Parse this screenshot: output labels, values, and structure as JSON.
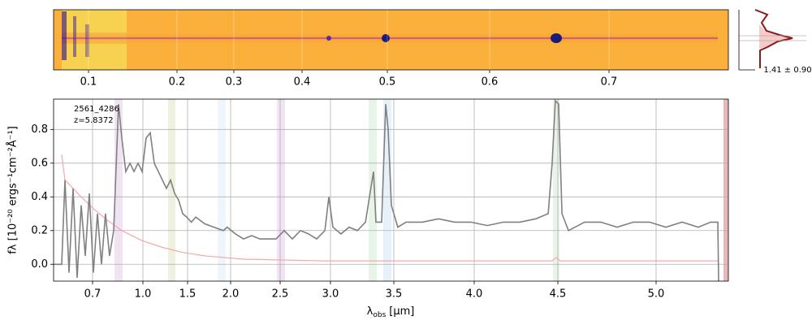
{
  "chart_data": {
    "type": "line",
    "object_id": "2561_4286",
    "redshift_label": "z=5.8372",
    "y_label": "fλ [10⁻²⁰ ergs⁻¹cm⁻²Å⁻¹]",
    "x_label_symbol": "λ",
    "x_label_sub": "obs",
    "x_label_unit": "[μm]",
    "profile_label": "1.41 ± 0.90",
    "top_xticks": [
      0.1,
      0.2,
      0.3,
      0.4,
      0.5,
      0.6,
      0.7
    ],
    "xlim": [
      0.47,
      5.37
    ],
    "xticks": [
      0.7,
      {
        "value": 1.0,
        "label": "1.0"
      },
      1.5,
      {
        "value": 2.0,
        "label": "2.0"
      },
      2.5,
      {
        "value": 3.0,
        "label": "3.0"
      },
      3.5,
      {
        "value": 4.0,
        "label": "4.0"
      },
      4.5,
      {
        "value": 5.0,
        "label": "5.0"
      }
    ],
    "ylim": [
      -0.1,
      0.98
    ],
    "yticks": [
      {
        "value": 0,
        "label": "0.0"
      },
      0.2,
      0.4,
      0.6,
      0.8
    ],
    "grid": true,
    "series": [
      {
        "name": "flux",
        "color": "#808080",
        "x": [
          0.47,
          0.518,
          0.537,
          0.561,
          0.585,
          0.609,
          0.633,
          0.657,
          0.681,
          0.705,
          0.729,
          0.753,
          0.777,
          0.801,
          0.826,
          0.855,
          0.874,
          0.898,
          0.923,
          0.947,
          0.971,
          0.995,
          1.036,
          1.082,
          1.127,
          1.173,
          1.218,
          1.264,
          1.309,
          1.355,
          1.4,
          1.445,
          1.491,
          1.542,
          1.595,
          1.7,
          1.806,
          1.915,
          1.96,
          2.049,
          2.131,
          2.213,
          2.295,
          2.377,
          2.459,
          2.54,
          2.621,
          2.702,
          2.782,
          2.863,
          2.944,
          2.984,
          3.019,
          3.083,
          3.147,
          3.212,
          3.276,
          3.308,
          3.34,
          3.359,
          3.404,
          3.436,
          3.455,
          3.481,
          3.525,
          3.576,
          3.677,
          3.778,
          3.879,
          3.98,
          4.078,
          4.175,
          4.272,
          4.369,
          4.442,
          4.466,
          4.485,
          4.504,
          4.521,
          4.554,
          4.636,
          4.719,
          4.802,
          4.884,
          4.967,
          5.05,
          5.133,
          5.216,
          5.279,
          5.316,
          5.32
        ],
        "values": [
          0,
          0,
          0.5,
          -0.05,
          0.45,
          -0.08,
          0.35,
          0.05,
          0.42,
          -0.05,
          0.3,
          0,
          0.3,
          0.05,
          0.2,
          0.95,
          0.75,
          0.55,
          0.6,
          0.55,
          0.6,
          0.55,
          0.75,
          0.78,
          0.6,
          0.55,
          0.5,
          0.45,
          0.5,
          0.42,
          0.38,
          0.3,
          0.28,
          0.25,
          0.28,
          0.24,
          0.22,
          0.2,
          0.22,
          0.18,
          0.15,
          0.17,
          0.15,
          0.15,
          0.15,
          0.2,
          0.15,
          0.2,
          0.18,
          0.15,
          0.2,
          0.4,
          0.22,
          0.18,
          0.22,
          0.2,
          0.25,
          0.4,
          0.55,
          0.25,
          0.25,
          0.95,
          0.8,
          0.35,
          0.22,
          0.25,
          0.25,
          0.27,
          0.25,
          0.25,
          0.23,
          0.25,
          0.25,
          0.27,
          0.3,
          0.6,
          0.97,
          0.95,
          0.3,
          0.2,
          0.25,
          0.25,
          0.22,
          0.25,
          0.25,
          0.22,
          0.25,
          0.22,
          0.25,
          0.25,
          -0.1
        ]
      },
      {
        "name": "error",
        "color": "#f4a8a8",
        "x": [
          0.518,
          0.537,
          0.585,
          0.633,
          0.705,
          0.777,
          0.874,
          0.995,
          1.218,
          1.445,
          1.7,
          2.131,
          2.944,
          4.078,
          4.466,
          4.49,
          4.512,
          5.316
        ],
        "values": [
          0.65,
          0.5,
          0.45,
          0.4,
          0.33,
          0.27,
          0.2,
          0.14,
          0.1,
          0.07,
          0.05,
          0.03,
          0.02,
          0.02,
          0.02,
          0.04,
          0.02,
          0.02
        ]
      }
    ]
  }
}
